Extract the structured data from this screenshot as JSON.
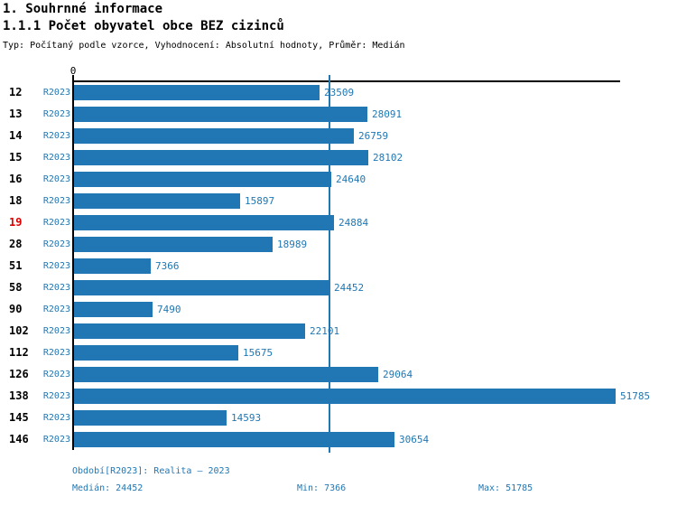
{
  "header": {
    "title": "1. Souhrnné informace",
    "subtitle": "1.1.1 Počet obyvatel obce BEZ cizinců",
    "meta": "Typ: Počítaný podle vzorce, Vyhodnocení: Absolutní hodnoty, Průměr: Medián"
  },
  "chart_data": {
    "type": "bar",
    "orientation": "horizontal",
    "origin_label": "0",
    "series_label": "R2023",
    "categories": [
      "12",
      "13",
      "14",
      "15",
      "16",
      "18",
      "19",
      "28",
      "51",
      "58",
      "90",
      "102",
      "112",
      "126",
      "138",
      "145",
      "146"
    ],
    "values": [
      23509,
      28091,
      26759,
      28102,
      24640,
      15897,
      24884,
      18989,
      7366,
      24452,
      7490,
      22101,
      15675,
      29064,
      51785,
      14593,
      30654
    ],
    "highlighted_category": "19",
    "xlim": [
      0,
      51785
    ],
    "median_value": 24452,
    "grid": "single-median-reference-line",
    "legend_position": "none",
    "bar_color": "#2077b4",
    "text_color": "#1f77b4",
    "highlight_color": "#dd0000"
  },
  "footer": {
    "period": "Období[R2023]: Realita – 2023",
    "median": "Medián: 24452",
    "min": "Min: 7366",
    "max": "Max: 51785"
  }
}
